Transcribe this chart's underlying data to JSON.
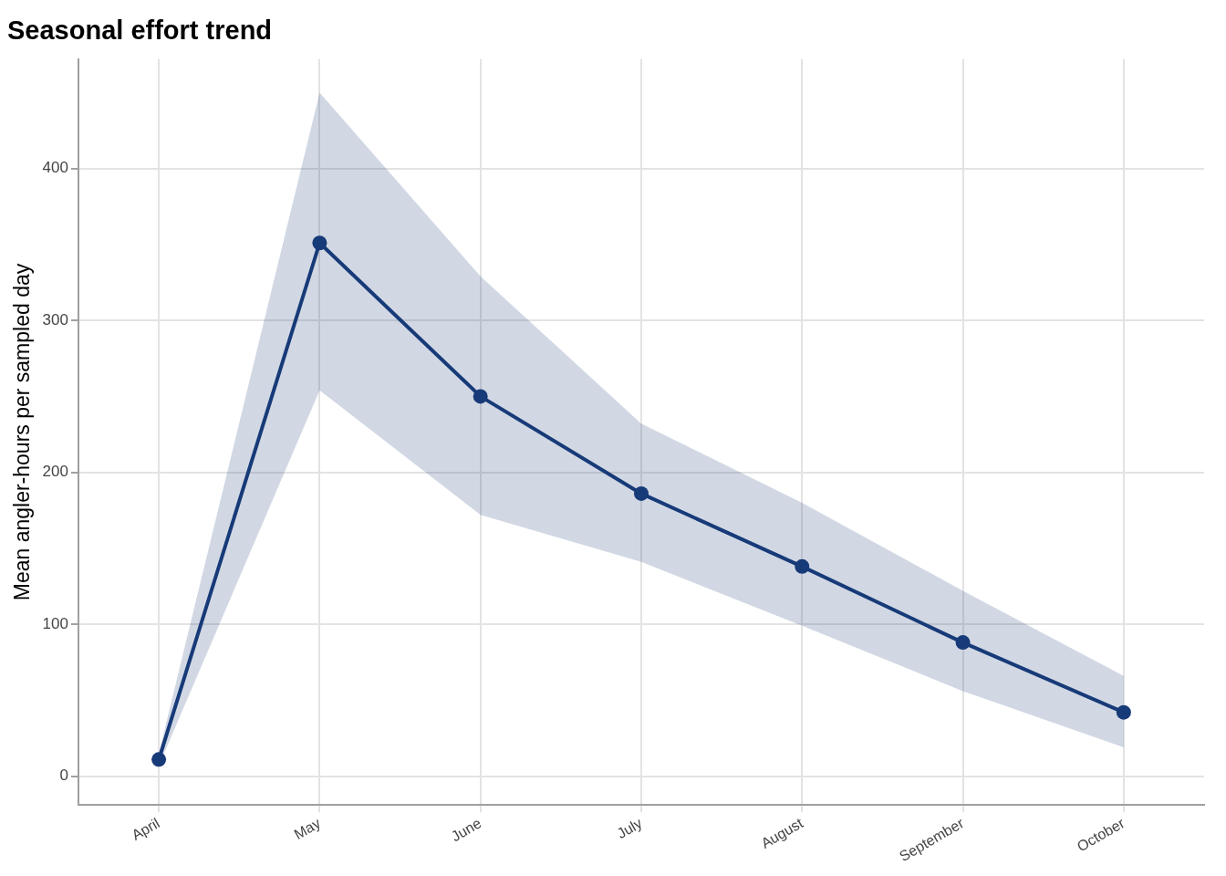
{
  "chart_data": {
    "type": "line",
    "title": "Seasonal effort trend",
    "ylabel": "Mean angler-hours per sampled day",
    "categories": [
      "April",
      "May",
      "June",
      "July",
      "August",
      "September",
      "October"
    ],
    "series": [
      {
        "color": "#173a78",
        "values": [
          11,
          351,
          250,
          186,
          138,
          88,
          42
        ],
        "lower": [
          7,
          254,
          172,
          141,
          99,
          56,
          19
        ],
        "upper": [
          15,
          450,
          329,
          232,
          180,
          122,
          66
        ]
      }
    ],
    "ylim": [
      -19,
      472
    ],
    "yticks": [
      0,
      100,
      200,
      300,
      400
    ],
    "grid": true,
    "legend": false,
    "marker": "circle",
    "line_style": "solid"
  }
}
